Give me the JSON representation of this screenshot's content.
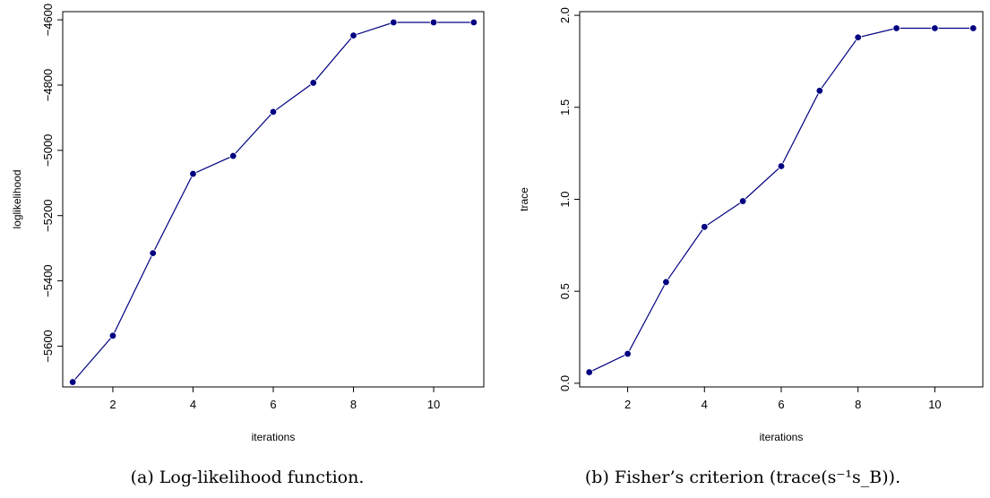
{
  "colors": {
    "series": "#000080",
    "axis": "#000000"
  },
  "charts": [
    {
      "caption": "(a) Log-likelihood function.",
      "chart_data": {
        "type": "line",
        "xlabel": "iterations",
        "ylabel": "loglikelihood",
        "xlim": [
          0.75,
          11.25
        ],
        "ylim": [
          -5725,
          -4575
        ],
        "xticks": [
          2,
          4,
          6,
          8,
          10
        ],
        "xtick_labels": [
          "2",
          "4",
          "6",
          "8",
          "10"
        ],
        "yticks": [
          -5600,
          -5400,
          -5200,
          -5000,
          -4800,
          -4600
        ],
        "ytick_labels": [
          "−5600",
          "−5400",
          "−5200",
          "−5000",
          "−4800",
          "−4600"
        ],
        "x": [
          1,
          2,
          3,
          4,
          5,
          6,
          7,
          8,
          9,
          10,
          11
        ],
        "y": [
          -5710,
          -5568,
          -5315,
          -5072,
          -5017,
          -4882,
          -4793,
          -4648,
          -4608,
          -4608,
          -4608
        ]
      }
    },
    {
      "caption": "(b) Fisher’s criterion (trace(s⁻¹s_B)).",
      "chart_data": {
        "type": "line",
        "xlabel": "iterations",
        "ylabel": "trace",
        "xlim": [
          0.75,
          11.25
        ],
        "ylim": [
          -0.02,
          2.02
        ],
        "xticks": [
          2,
          4,
          6,
          8,
          10
        ],
        "xtick_labels": [
          "2",
          "4",
          "6",
          "8",
          "10"
        ],
        "yticks": [
          0.0,
          0.5,
          1.0,
          1.5,
          2.0
        ],
        "ytick_labels": [
          "0.0",
          "0.5",
          "1.0",
          "1.5",
          "2.0"
        ],
        "x": [
          1,
          2,
          3,
          4,
          5,
          6,
          7,
          8,
          9,
          10,
          11
        ],
        "y": [
          0.06,
          0.16,
          0.55,
          0.85,
          0.99,
          1.18,
          1.59,
          1.88,
          1.93,
          1.93,
          1.93
        ]
      }
    }
  ]
}
